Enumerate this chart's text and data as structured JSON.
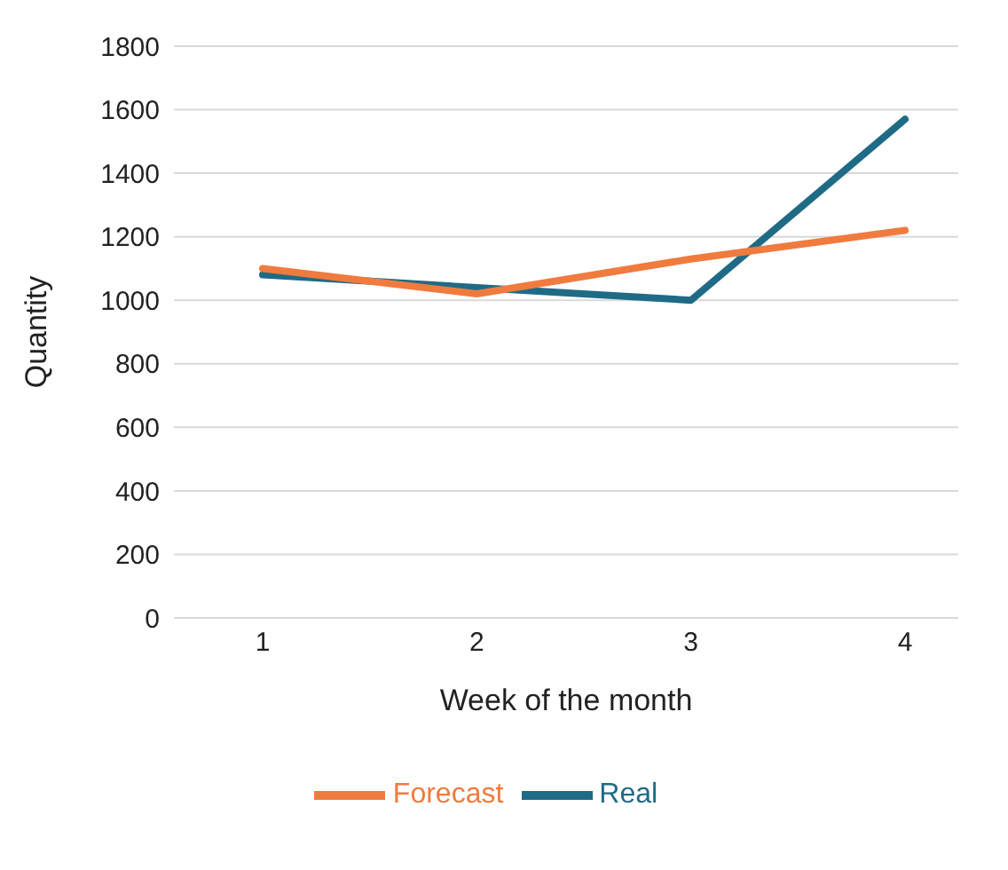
{
  "chart_data": {
    "type": "line",
    "xlabel": "Week of the month",
    "ylabel": "Quantity",
    "categories": [
      "1",
      "2",
      "3",
      "4"
    ],
    "series": [
      {
        "name": "Real",
        "color": "#1f6b85",
        "values": [
          1080,
          1040,
          1000,
          1570
        ]
      },
      {
        "name": "Forecast",
        "color": "#f07b3f",
        "values": [
          1100,
          1020,
          1130,
          1220
        ]
      }
    ],
    "ylim": [
      0,
      1800
    ],
    "yticks": [
      0,
      200,
      400,
      600,
      800,
      1000,
      1200,
      1400,
      1600,
      1800
    ],
    "grid": "y",
    "legend": "bottom",
    "marker": "none",
    "line_style": "solid"
  }
}
